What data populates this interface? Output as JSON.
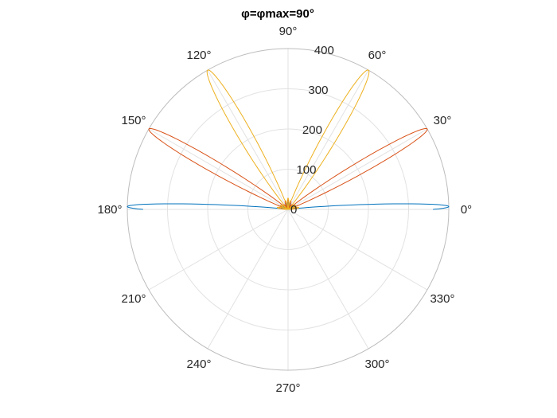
{
  "chart_data": {
    "type": "line",
    "subtype": "polar",
    "title": "φ=φmax=90°",
    "rlim": [
      0,
      400
    ],
    "r_ticks": [
      0,
      100,
      200,
      300,
      400
    ],
    "r_tick_labels": [
      "0",
      "100",
      "200",
      "300",
      "400"
    ],
    "theta_ticks_deg": [
      0,
      30,
      60,
      90,
      120,
      150,
      180,
      210,
      240,
      270,
      300,
      330
    ],
    "theta_tick_labels": [
      "0°",
      "30°",
      "60°",
      "90°",
      "120°",
      "150°",
      "180°",
      "210°",
      "240°",
      "270°",
      "300°",
      "330°"
    ],
    "grid": true,
    "series": [
      {
        "color": "#0072BD",
        "main_lobes": [
          {
            "angle_deg": 1,
            "peak": 400,
            "width_deg": 2.2
          },
          {
            "angle_deg": 179,
            "peak": 400,
            "width_deg": 2.2
          }
        ],
        "side_lobe_level": 18
      },
      {
        "color": "#D95319",
        "main_lobes": [
          {
            "angle_deg": 30,
            "peak": 400,
            "width_deg": 3.6
          },
          {
            "angle_deg": 150,
            "peak": 400,
            "width_deg": 3.6
          }
        ],
        "side_lobe_level": 24
      },
      {
        "color": "#EDB120",
        "main_lobes": [
          {
            "angle_deg": 60,
            "peak": 400,
            "width_deg": 4.2
          },
          {
            "angle_deg": 120,
            "peak": 400,
            "width_deg": 4.2
          }
        ],
        "side_lobe_level": 28
      }
    ]
  }
}
